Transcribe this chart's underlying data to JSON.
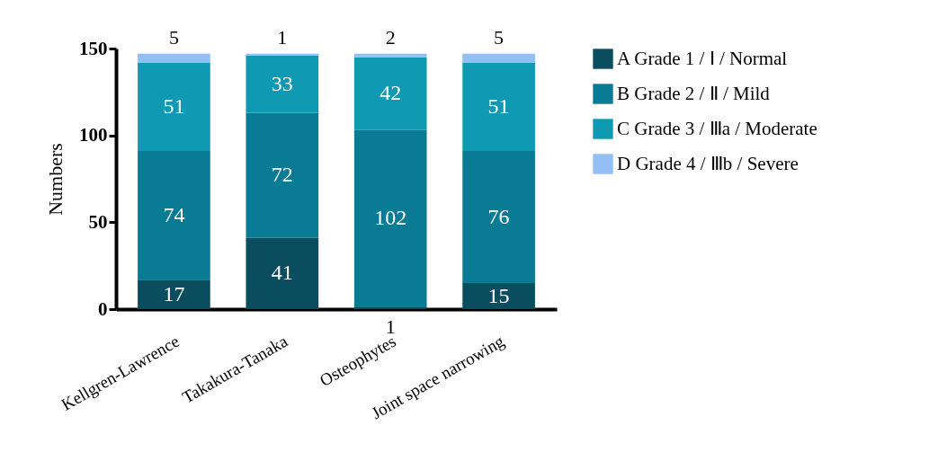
{
  "chart_data": {
    "type": "bar",
    "stacked": true,
    "ylabel": "Numbers",
    "categories": [
      "Kellgren-Lawrence",
      "Takakura-Tanaka",
      "Osteophytes",
      "Joint space narrowing"
    ],
    "series": [
      {
        "name": "A  Grade 1 / Ⅰ / Normal",
        "color": "#0a4d5f",
        "values": [
          17,
          41,
          1,
          15
        ]
      },
      {
        "name": "B  Grade 2 / Ⅱ / Mild",
        "color": "#0a7b94",
        "values": [
          74,
          72,
          102,
          76
        ]
      },
      {
        "name": "C  Grade 3 / Ⅲa / Moderate",
        "color": "#0f99b2",
        "values": [
          51,
          33,
          42,
          51
        ]
      },
      {
        "name": "D  Grade 4 / Ⅲb / Severe",
        "color": "#93bff5",
        "values": [
          5,
          1,
          2,
          5
        ]
      }
    ],
    "ylim": [
      0,
      150
    ],
    "yticks": [
      0,
      50,
      100,
      150
    ],
    "grid": false,
    "legend": "right",
    "data_labels": true
  }
}
